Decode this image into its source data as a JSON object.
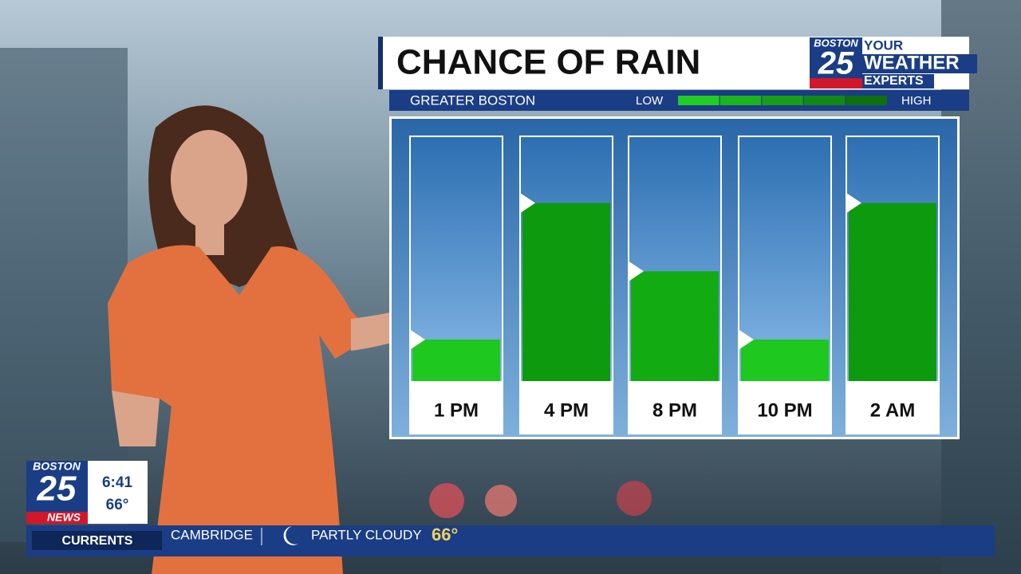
{
  "chart_data": {
    "type": "bar",
    "title": "CHANCE OF RAIN",
    "subtitle": "GREATER BOSTON",
    "categories": [
      "1 PM",
      "4 PM",
      "8 PM",
      "10 PM",
      "2 AM"
    ],
    "values": [
      17,
      73,
      45,
      17,
      73
    ],
    "colors": [
      "#1ec81e",
      "#0e9a0e",
      "#12ab12",
      "#1ec81e",
      "#0e9a0e"
    ],
    "ylim": [
      0,
      100
    ],
    "scale": {
      "low": "LOW",
      "high": "HIGH",
      "colors": [
        "#22cc22",
        "#1db51d",
        "#189e18",
        "#148814",
        "#0f700f"
      ]
    }
  },
  "logo": {
    "station": "BOSTON",
    "number": "25",
    "line1": "YOUR",
    "line2": "WEATHER",
    "line3": "EXPERTS"
  },
  "bug": {
    "station": "BOSTON",
    "number": "25",
    "brand": "NEWS",
    "time": "6:41",
    "temperature": "66°"
  },
  "ticker": {
    "label": "CURRENTS",
    "location": "CAMBRIDGE",
    "condition": "PARTLY CLOUDY",
    "temperature": "66°"
  }
}
